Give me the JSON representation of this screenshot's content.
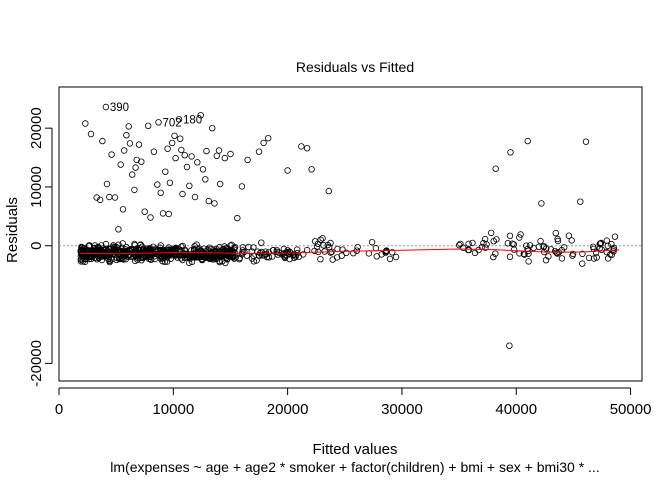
{
  "chart_data": {
    "type": "scatter",
    "title": "Residuals vs Fitted",
    "xlabel": "Fitted values",
    "ylabel": "Residuals",
    "subtitle": "lm(expenses ~ age + age2 * smoker + factor(children) + bmi + sex + bmi30 *  ...",
    "xlim": [
      0,
      51000
    ],
    "ylim": [
      -23000,
      27000
    ],
    "x_ticks": [
      0,
      10000,
      20000,
      30000,
      40000,
      50000
    ],
    "x_tick_labels": [
      "0",
      "10000",
      "20000",
      "30000",
      "40000",
      "50000"
    ],
    "y_ticks": [
      -20000,
      0,
      10000,
      20000
    ],
    "y_tick_labels": [
      "-20000",
      "0",
      "10000",
      "20000"
    ],
    "grid": false,
    "reference_line": 0,
    "point_style": "open-circle",
    "colors": {
      "points": "#000000",
      "smooth": "#ff0000",
      "zero_line": "#999999"
    },
    "labeled_points": [
      {
        "label": "390",
        "x": 4100,
        "y": 23600
      },
      {
        "label": "702",
        "x": 8700,
        "y": 21000
      },
      {
        "label": "180",
        "x": 10500,
        "y": 21500
      }
    ],
    "outliers": [
      [
        2300,
        20800
      ],
      [
        2800,
        19000
      ],
      [
        3300,
        8200
      ],
      [
        3600,
        7800
      ],
      [
        3800,
        17800
      ],
      [
        4100,
        23600
      ],
      [
        4200,
        10500
      ],
      [
        4400,
        8300
      ],
      [
        4600,
        15500
      ],
      [
        4900,
        8200
      ],
      [
        5200,
        2800
      ],
      [
        5400,
        13800
      ],
      [
        5600,
        6200
      ],
      [
        5700,
        16200
      ],
      [
        5900,
        18800
      ],
      [
        6100,
        20300
      ],
      [
        6200,
        17400
      ],
      [
        6400,
        12100
      ],
      [
        6600,
        9500
      ],
      [
        6700,
        13300
      ],
      [
        6800,
        14600
      ],
      [
        7000,
        17200
      ],
      [
        7200,
        14300
      ],
      [
        7500,
        5800
      ],
      [
        7800,
        20400
      ],
      [
        8000,
        4800
      ],
      [
        8300,
        16000
      ],
      [
        8600,
        10400
      ],
      [
        8700,
        21000
      ],
      [
        8900,
        9000
      ],
      [
        9100,
        5500
      ],
      [
        9300,
        12600
      ],
      [
        9500,
        16500
      ],
      [
        9600,
        5400
      ],
      [
        9700,
        10700
      ],
      [
        9900,
        17500
      ],
      [
        10100,
        18700
      ],
      [
        10200,
        14900
      ],
      [
        10500,
        21500
      ],
      [
        10600,
        18200
      ],
      [
        10700,
        16300
      ],
      [
        10800,
        8800
      ],
      [
        11000,
        15400
      ],
      [
        11200,
        13400
      ],
      [
        11400,
        10200
      ],
      [
        11600,
        15200
      ],
      [
        11900,
        8300
      ],
      [
        12100,
        14200
      ],
      [
        12400,
        22200
      ],
      [
        12600,
        13000
      ],
      [
        12800,
        11300
      ],
      [
        12900,
        16100
      ],
      [
        13100,
        7600
      ],
      [
        13400,
        20000
      ],
      [
        13600,
        7200
      ],
      [
        13800,
        15300
      ],
      [
        14000,
        16200
      ],
      [
        14100,
        10500
      ],
      [
        14500,
        14900
      ],
      [
        15000,
        15600
      ],
      [
        15600,
        4700
      ],
      [
        16000,
        10100
      ],
      [
        16500,
        14600
      ],
      [
        17500,
        16000
      ],
      [
        17900,
        17500
      ],
      [
        18300,
        18300
      ],
      [
        20000,
        12800
      ],
      [
        21200,
        16900
      ],
      [
        21700,
        16600
      ],
      [
        22100,
        13000
      ],
      [
        23600,
        9300
      ],
      [
        38200,
        13100
      ],
      [
        39500,
        15900
      ],
      [
        41000,
        17800
      ],
      [
        42200,
        7200
      ],
      [
        45600,
        7500
      ],
      [
        46100,
        17700
      ],
      [
        39400,
        -17000
      ]
    ],
    "smooth_x": [
      1800,
      5000,
      8000,
      10000,
      13000,
      16000,
      20000,
      25000,
      30000,
      35000,
      38000,
      40000,
      43000,
      46000,
      49000
    ],
    "smooth_y": [
      -1300,
      -1350,
      -1250,
      -1150,
      -1200,
      -1300,
      -1250,
      -950,
      -750,
      -550,
      -650,
      -850,
      -1100,
      -1050,
      -700
    ]
  }
}
